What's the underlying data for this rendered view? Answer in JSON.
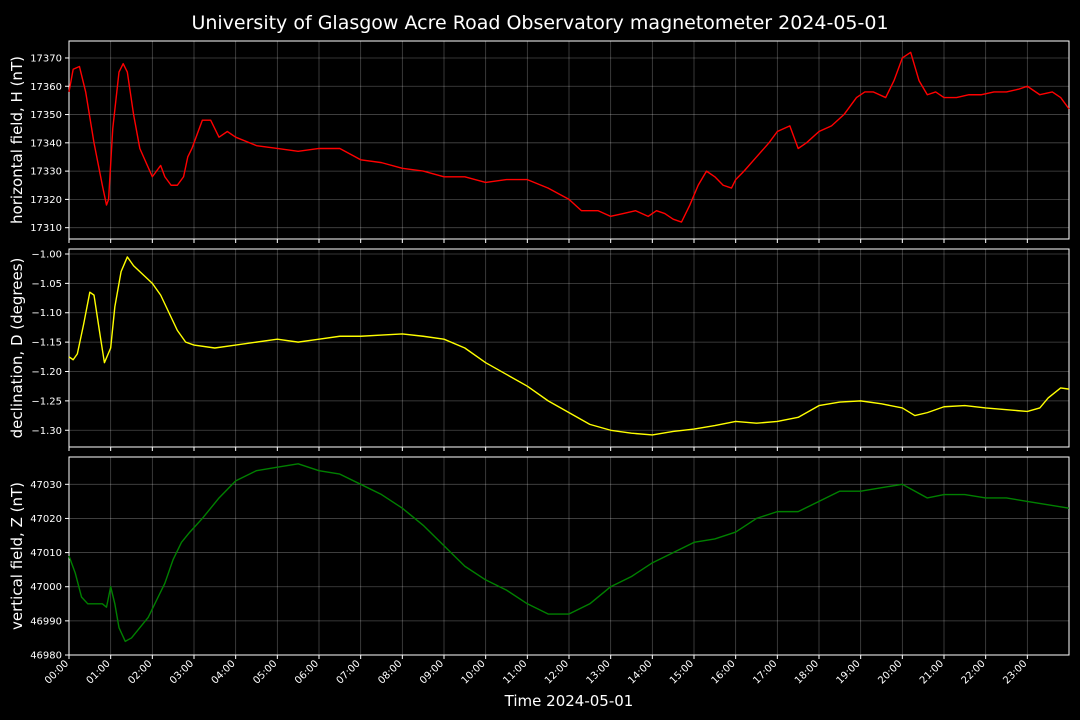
{
  "chart_data": {
    "type": "line",
    "title": "University of Glasgow Acre Road Observatory magnetometer 2024-05-01",
    "xlabel": "Time 2024-05-01",
    "xlim": [
      0,
      24
    ],
    "x_tick_labels": [
      "00:00",
      "01:00",
      "02:00",
      "03:00",
      "04:00",
      "05:00",
      "06:00",
      "07:00",
      "08:00",
      "09:00",
      "10:00",
      "11:00",
      "12:00",
      "13:00",
      "14:00",
      "15:00",
      "16:00",
      "17:00",
      "18:00",
      "19:00",
      "20:00",
      "21:00",
      "22:00",
      "23:00"
    ],
    "grid": true,
    "panels": [
      {
        "ylabel": "horizontal field, H (nT)",
        "color": "#ff0000",
        "ylim": [
          17306,
          17376
        ],
        "yticks": [
          17310,
          17320,
          17330,
          17340,
          17350,
          17360,
          17370
        ],
        "y_tick_labels": [
          "17310",
          "17320",
          "17330",
          "17340",
          "17350",
          "17360",
          "17370"
        ],
        "series": {
          "x": [
            0,
            0.1,
            0.25,
            0.4,
            0.6,
            0.8,
            0.9,
            0.95,
            1.05,
            1.2,
            1.3,
            1.4,
            1.55,
            1.7,
            1.85,
            2.0,
            2.1,
            2.2,
            2.3,
            2.45,
            2.6,
            2.75,
            2.85,
            2.95,
            3.1,
            3.2,
            3.4,
            3.6,
            3.8,
            4.0,
            4.5,
            5.0,
            5.5,
            6.0,
            6.5,
            7.0,
            7.5,
            8.0,
            8.5,
            9.0,
            9.5,
            10.0,
            10.5,
            11.0,
            11.5,
            12.0,
            12.3,
            12.7,
            13.0,
            13.3,
            13.6,
            13.9,
            14.1,
            14.3,
            14.5,
            14.7,
            14.9,
            15.1,
            15.3,
            15.5,
            15.7,
            15.9,
            16.0,
            16.2,
            16.5,
            16.8,
            17.0,
            17.3,
            17.5,
            17.7,
            18.0,
            18.3,
            18.6,
            18.9,
            19.1,
            19.3,
            19.6,
            19.8,
            20.0,
            20.2,
            20.4,
            20.6,
            20.8,
            21.0,
            21.3,
            21.6,
            21.9,
            22.2,
            22.5,
            22.8,
            23.0,
            23.3,
            23.6,
            23.8,
            24.0
          ],
          "values": [
            17358,
            17366,
            17367,
            17358,
            17340,
            17325,
            17318,
            17320,
            17345,
            17365,
            17368,
            17365,
            17350,
            17338,
            17333,
            17328,
            17330,
            17332,
            17328,
            17325,
            17325,
            17328,
            17335,
            17338,
            17344,
            17348,
            17348,
            17342,
            17344,
            17342,
            17339,
            17338,
            17337,
            17338,
            17338,
            17334,
            17333,
            17331,
            17330,
            17328,
            17328,
            17326,
            17327,
            17327,
            17324,
            17320,
            17316,
            17316,
            17314,
            17315,
            17316,
            17314,
            17316,
            17315,
            17313,
            17312,
            17318,
            17325,
            17330,
            17328,
            17325,
            17324,
            17327,
            17330,
            17335,
            17340,
            17344,
            17346,
            17338,
            17340,
            17344,
            17346,
            17350,
            17356,
            17358,
            17358,
            17356,
            17362,
            17370,
            17372,
            17362,
            17357,
            17358,
            17356,
            17356,
            17357,
            17357,
            17358,
            17358,
            17359,
            17360,
            17357,
            17358,
            17356,
            17352
          ]
        }
      },
      {
        "ylabel": "declination, D (degrees)",
        "color": "#ffff00",
        "ylim": [
          -1.3285,
          -0.9915
        ],
        "yticks": [
          -1.3,
          -1.25,
          -1.2,
          -1.15,
          -1.1,
          -1.05,
          -1.0
        ],
        "y_tick_labels": [
          "−1.30",
          "−1.25",
          "−1.20",
          "−1.15",
          "−1.10",
          "−1.05",
          "−1.00"
        ],
        "series": {
          "x": [
            0,
            0.1,
            0.2,
            0.35,
            0.5,
            0.6,
            0.75,
            0.85,
            1.0,
            1.1,
            1.25,
            1.4,
            1.55,
            1.7,
            1.85,
            2.0,
            2.2,
            2.4,
            2.6,
            2.8,
            3.0,
            3.5,
            4.0,
            4.5,
            5.0,
            5.5,
            6.0,
            6.5,
            7.0,
            7.5,
            8.0,
            8.5,
            9.0,
            9.5,
            10.0,
            10.5,
            11.0,
            11.5,
            12.0,
            12.5,
            13.0,
            13.5,
            14.0,
            14.5,
            15.0,
            15.5,
            16.0,
            16.5,
            17.0,
            17.5,
            18.0,
            18.5,
            19.0,
            19.5,
            20.0,
            20.3,
            20.6,
            21.0,
            21.5,
            22.0,
            22.5,
            23.0,
            23.3,
            23.5,
            23.8,
            24.0
          ],
          "values": [
            -1.175,
            -1.18,
            -1.17,
            -1.12,
            -1.065,
            -1.07,
            -1.14,
            -1.185,
            -1.16,
            -1.09,
            -1.03,
            -1.005,
            -1.02,
            -1.03,
            -1.04,
            -1.05,
            -1.07,
            -1.1,
            -1.13,
            -1.15,
            -1.155,
            -1.16,
            -1.155,
            -1.15,
            -1.145,
            -1.15,
            -1.145,
            -1.14,
            -1.14,
            -1.138,
            -1.136,
            -1.14,
            -1.145,
            -1.16,
            -1.185,
            -1.205,
            -1.225,
            -1.25,
            -1.27,
            -1.29,
            -1.3,
            -1.305,
            -1.308,
            -1.302,
            -1.298,
            -1.292,
            -1.285,
            -1.288,
            -1.285,
            -1.278,
            -1.258,
            -1.252,
            -1.25,
            -1.255,
            -1.262,
            -1.275,
            -1.27,
            -1.26,
            -1.258,
            -1.262,
            -1.265,
            -1.268,
            -1.262,
            -1.245,
            -1.228,
            -1.23
          ]
        }
      },
      {
        "ylabel": "vertical field, Z (nT)",
        "color": "#008000",
        "ylim": [
          46980,
          47038
        ],
        "yticks": [
          46980,
          46990,
          47000,
          47010,
          47020,
          47030
        ],
        "y_tick_labels": [
          "46980",
          "46990",
          "47000",
          "47010",
          "47020",
          "47030"
        ],
        "series": {
          "x": [
            0,
            0.15,
            0.3,
            0.45,
            0.6,
            0.8,
            0.9,
            1.0,
            1.1,
            1.2,
            1.35,
            1.5,
            1.7,
            1.9,
            2.1,
            2.3,
            2.5,
            2.7,
            2.9,
            3.2,
            3.6,
            4.0,
            4.5,
            5.0,
            5.5,
            6.0,
            6.5,
            7.0,
            7.5,
            8.0,
            8.5,
            9.0,
            9.5,
            10.0,
            10.5,
            11.0,
            11.5,
            12.0,
            12.5,
            13.0,
            13.5,
            14.0,
            14.5,
            15.0,
            15.5,
            16.0,
            16.5,
            17.0,
            17.5,
            18.0,
            18.5,
            19.0,
            19.5,
            20.0,
            20.3,
            20.6,
            21.0,
            21.5,
            22.0,
            22.5,
            23.0,
            23.5,
            24.0
          ],
          "values": [
            47009,
            47004,
            46997,
            46995,
            46995,
            46995,
            46994,
            47000,
            46995,
            46988,
            46984,
            46985,
            46988,
            46991,
            46996,
            47001,
            47008,
            47013,
            47016,
            47020,
            47026,
            47031,
            47034,
            47035,
            47036,
            47034,
            47033,
            47030,
            47027,
            47023,
            47018,
            47012,
            47006,
            47002,
            46999,
            46995,
            46992,
            46992,
            46995,
            47000,
            47003,
            47007,
            47010,
            47013,
            47014,
            47016,
            47020,
            47022,
            47022,
            47025,
            47028,
            47028,
            47029,
            47030,
            47028,
            47026,
            47027,
            47027,
            47026,
            47026,
            47025,
            47024,
            47023
          ]
        }
      }
    ]
  }
}
